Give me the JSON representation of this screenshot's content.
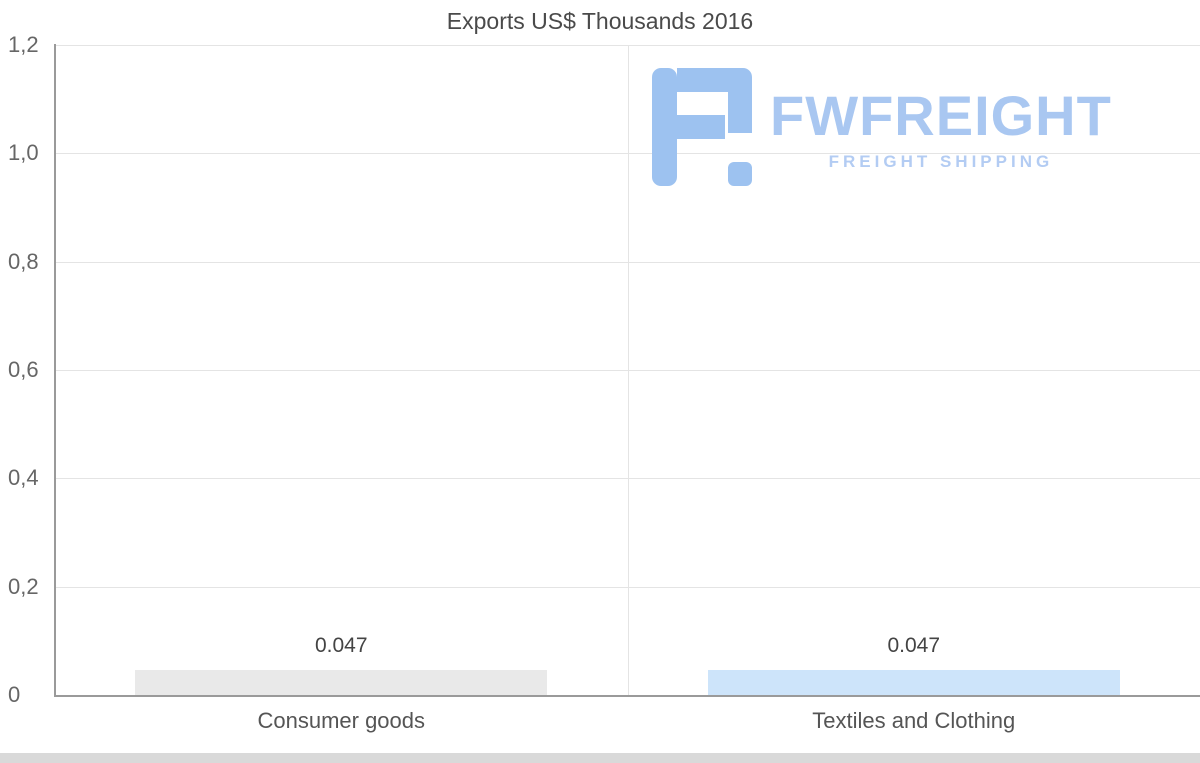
{
  "watermark": {
    "brand": "FWFREIGHT",
    "tagline": "FREIGHT SHIPPING",
    "color": "#a9c7f1"
  },
  "chart_data": {
    "type": "bar",
    "title": "Exports US$ Thousands 2016",
    "categories": [
      "Consumer goods",
      "Textiles and Clothing"
    ],
    "values": [
      0.047,
      0.047
    ],
    "data_labels": [
      "0.047",
      "0.047"
    ],
    "y_ticks": [
      "0",
      "0,2",
      "0,4",
      "0,6",
      "0,8",
      "1,0",
      "1,2"
    ],
    "ylim": [
      0,
      1.2
    ],
    "grid": true,
    "legend_position": "none",
    "xlabel": "",
    "ylabel": "",
    "bar_colors": [
      "#e9e9e9",
      "#cde4fa"
    ]
  },
  "colors": {
    "grid": "#e4e4e4",
    "axis": "#9a9a9a",
    "tick_text": "#666666",
    "label_text": "#444444",
    "category_text": "#555555",
    "bar_gray": "#e9e9e9",
    "bar_blue": "#cde4fa",
    "brand_blue": "#a9c7f1",
    "bottom_strip": "#d9d9d9"
  }
}
